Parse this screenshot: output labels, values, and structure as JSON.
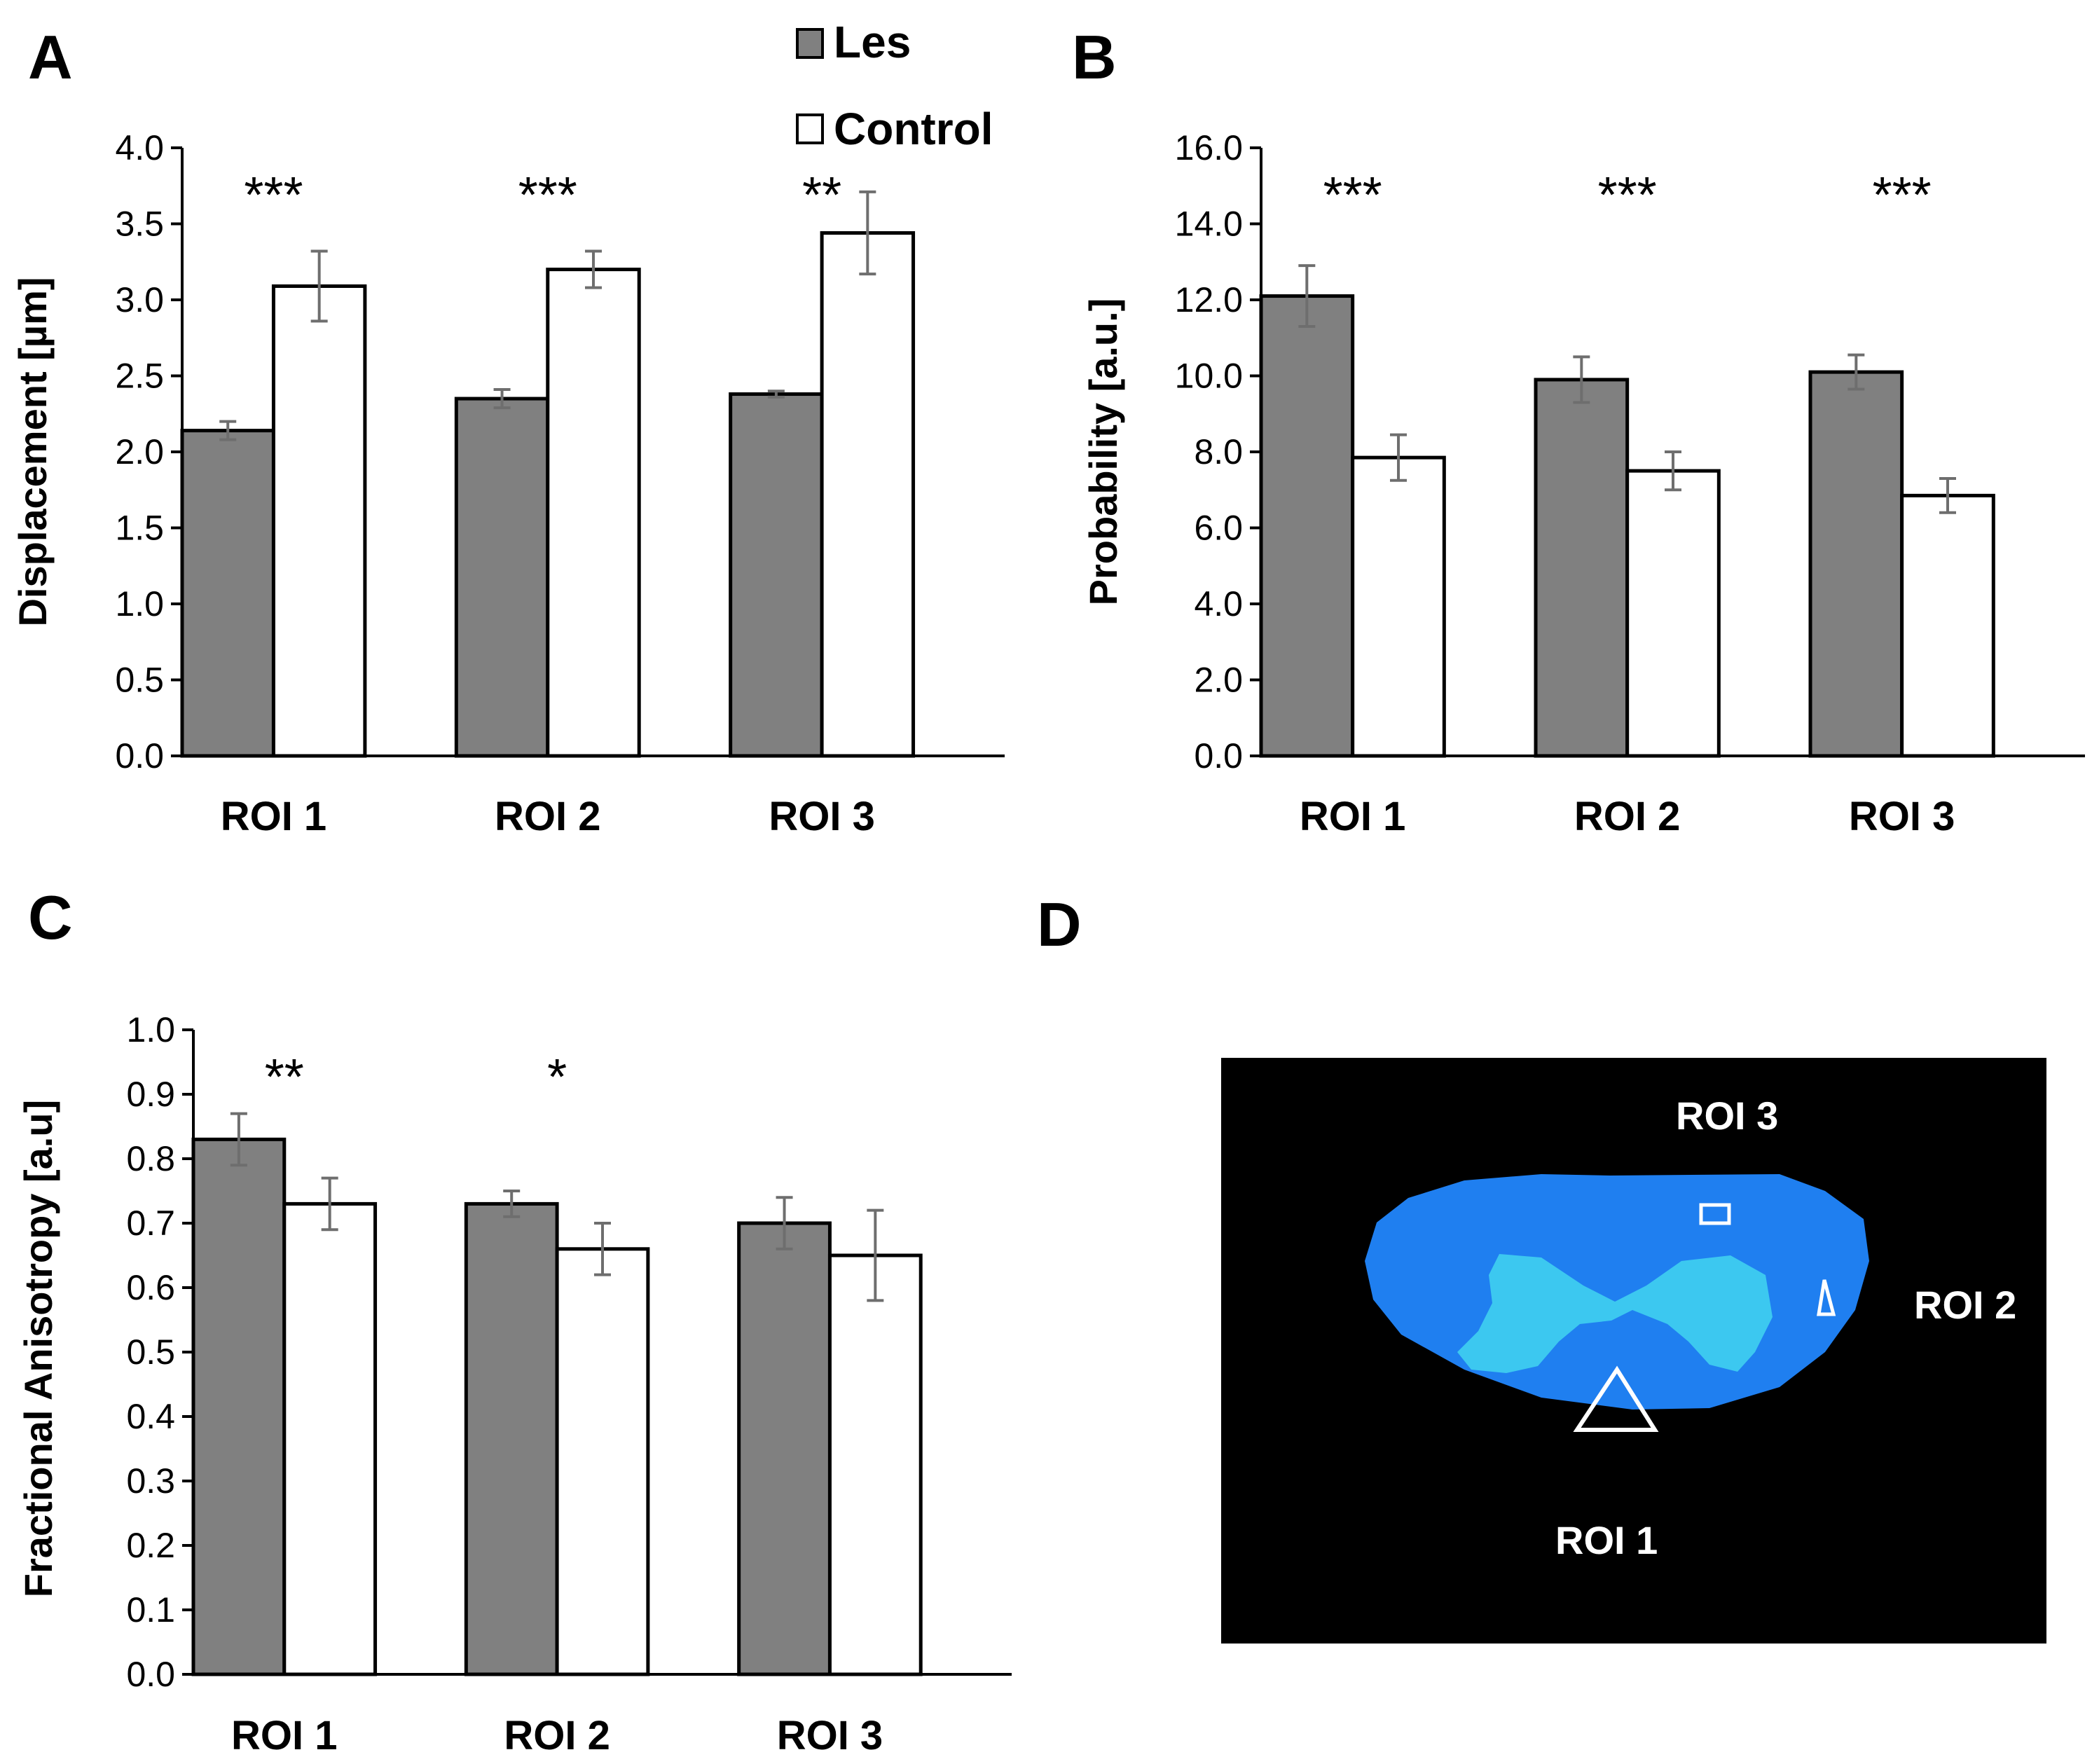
{
  "legend": {
    "items": [
      {
        "label": "Les",
        "color": "#808080"
      },
      {
        "label": "Control",
        "color": "#ffffff"
      }
    ]
  },
  "chart_data": [
    {
      "panel": "A",
      "type": "bar",
      "categories": [
        "ROI 1",
        "ROI 2",
        "ROI 3"
      ],
      "series": [
        {
          "name": "Les",
          "color": "#808080",
          "values": [
            2.14,
            2.35,
            2.38
          ],
          "errors": [
            0.06,
            0.06,
            0.02
          ]
        },
        {
          "name": "Control",
          "color": "#ffffff",
          "values": [
            3.09,
            3.2,
            3.44
          ],
          "errors": [
            0.23,
            0.12,
            0.27
          ]
        }
      ],
      "significance": [
        "***",
        "***",
        "**"
      ],
      "ylabel": "Displacement [µm]",
      "ylim": [
        0,
        4
      ],
      "yticks": [
        "0.0",
        "0.5",
        "1.0",
        "1.5",
        "2.0",
        "2.5",
        "3.0",
        "3.5",
        "4.0"
      ]
    },
    {
      "panel": "B",
      "type": "bar",
      "categories": [
        "ROI 1",
        "ROI 2",
        "ROI 3"
      ],
      "series": [
        {
          "name": "Les",
          "color": "#808080",
          "values": [
            12.1,
            9.9,
            10.1
          ],
          "errors": [
            0.8,
            0.6,
            0.45
          ]
        },
        {
          "name": "Control",
          "color": "#ffffff",
          "values": [
            7.85,
            7.5,
            6.85
          ],
          "errors": [
            0.6,
            0.5,
            0.45
          ]
        }
      ],
      "significance": [
        "***",
        "***",
        "***"
      ],
      "ylabel": "Probability [a.u.]",
      "ylim": [
        0,
        16
      ],
      "yticks": [
        "0.0",
        "2.0",
        "4.0",
        "6.0",
        "8.0",
        "10.0",
        "12.0",
        "14.0",
        "16.0"
      ]
    },
    {
      "panel": "C",
      "type": "bar",
      "categories": [
        "ROI 1",
        "ROI 2",
        "ROI 3"
      ],
      "series": [
        {
          "name": "Les",
          "color": "#808080",
          "values": [
            0.83,
            0.73,
            0.7
          ],
          "errors": [
            0.04,
            0.02,
            0.04
          ]
        },
        {
          "name": "Control",
          "color": "#ffffff",
          "values": [
            0.73,
            0.66,
            0.65
          ],
          "errors": [
            0.04,
            0.04,
            0.07
          ]
        }
      ],
      "significance": [
        "**",
        "*",
        ""
      ],
      "ylabel": "Fractional Anisotropy [a.u]",
      "ylim": [
        0,
        1
      ],
      "yticks": [
        "0.0",
        "0.1",
        "0.2",
        "0.3",
        "0.4",
        "0.5",
        "0.6",
        "0.7",
        "0.8",
        "0.9",
        "1.0"
      ]
    }
  ],
  "panel_d": {
    "letter": "D",
    "labels": {
      "roi3": "ROI 3",
      "roi2": "ROI 2",
      "roi1": "ROI 1"
    },
    "colors": {
      "background": "#000000",
      "tissue": "#1f7ff0",
      "grey_matter": "#3fd0f0",
      "marker": "#ffffff"
    }
  }
}
